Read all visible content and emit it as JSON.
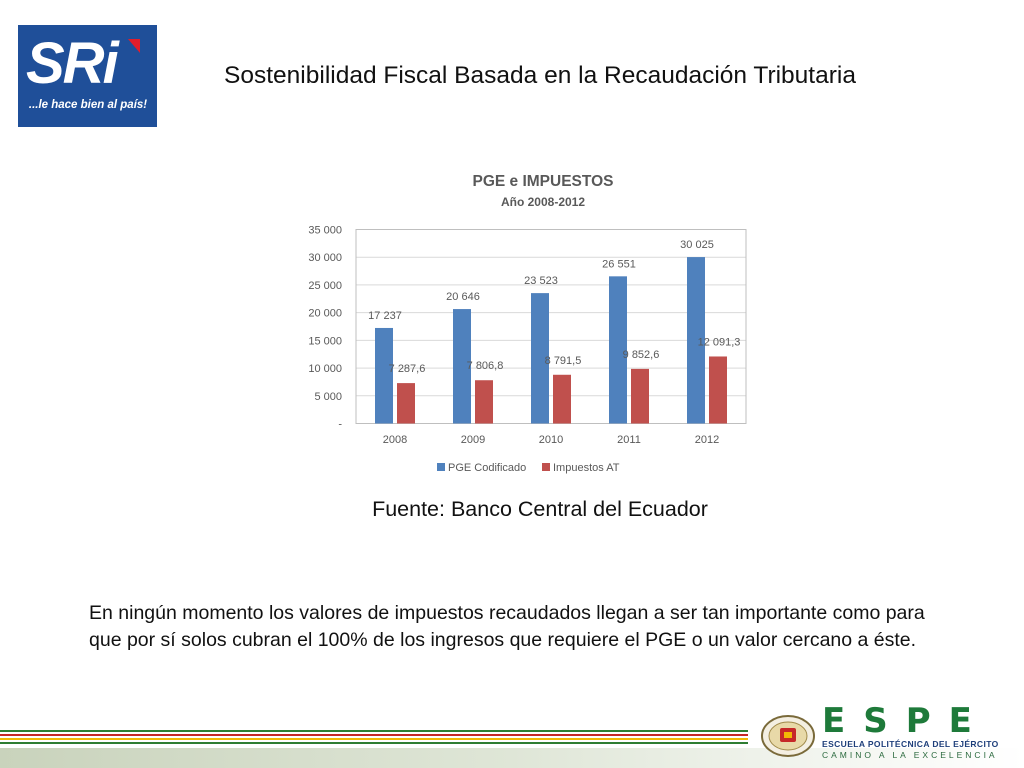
{
  "header": {
    "logo": {
      "brand": "SRi",
      "tagline": "...le hace bien al país!",
      "color": "#1f4f99"
    },
    "title": "Sostenibilidad Fiscal Basada en la Recaudación Tributaria"
  },
  "chart_data": {
    "type": "bar",
    "title": "PGE e IMPUESTOS",
    "subtitle": "Año 2008-2012",
    "xlabel": "",
    "ylabel": "",
    "categories": [
      "2008",
      "2009",
      "2010",
      "2011",
      "2012"
    ],
    "series": [
      {
        "name": "PGE Codificado",
        "values": [
          17237,
          20646,
          23523,
          26551,
          30025
        ],
        "labels": [
          "17 237",
          "20 646",
          "23 523",
          "26 551",
          "30 025"
        ],
        "color": "#4f81bd"
      },
      {
        "name": "Impuestos AT",
        "values": [
          7287.6,
          7806.8,
          8791.5,
          9852.6,
          12091.3
        ],
        "labels": [
          "7 287,6",
          "7 806,8",
          "8 791,5",
          "9 852,6",
          "12 091,3"
        ],
        "color": "#c0504d"
      }
    ],
    "ylim": [
      0,
      35000
    ],
    "yticks": [
      {
        "value": 0,
        "label": "-"
      },
      {
        "value": 5000,
        "label": "5 000"
      },
      {
        "value": 10000,
        "label": "10 000"
      },
      {
        "value": 15000,
        "label": "15 000"
      },
      {
        "value": 20000,
        "label": "20 000"
      },
      {
        "value": 25000,
        "label": "25 000"
      },
      {
        "value": 30000,
        "label": "30 000"
      },
      {
        "value": 35000,
        "label": "35 000"
      }
    ],
    "grid": true,
    "legend": "bottom"
  },
  "source": "Fuente: Banco Central del Ecuador",
  "body_text": "En ningún momento los valores de impuestos recaudados llegan a ser tan importante como para que por sí solos cubran el 100% de los ingresos que requiere el PGE o un valor cercano a éste.",
  "footer": {
    "stripe_colors": [
      "#2e7d32",
      "#ffffff",
      "#c62828",
      "#ffffff",
      "#f2b705",
      "#ffffff",
      "#2e7d32"
    ],
    "espe": {
      "letters": "ESPE",
      "line1": "ESCUELA POLITÉCNICA DEL EJÉRCITO",
      "line2": "CAMINO A LA EXCELENCIA"
    }
  }
}
